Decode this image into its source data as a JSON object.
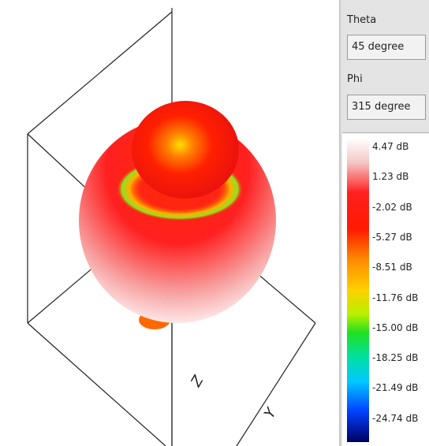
{
  "theta": {
    "label": "Theta",
    "value": "45 degree"
  },
  "phi": {
    "label": "Phi",
    "value": "315 degree"
  },
  "colorbar": {
    "labels": [
      "4.47 dB",
      "1.23 dB",
      "-2.02 dB",
      "-5.27 dB",
      "-8.51 dB",
      "-11.76 dB",
      "-15.00 dB",
      "-18.25 dB",
      "-21.49 dB",
      "-24.74 dB"
    ]
  },
  "axes": {
    "z": "Z",
    "y": "Y"
  }
}
